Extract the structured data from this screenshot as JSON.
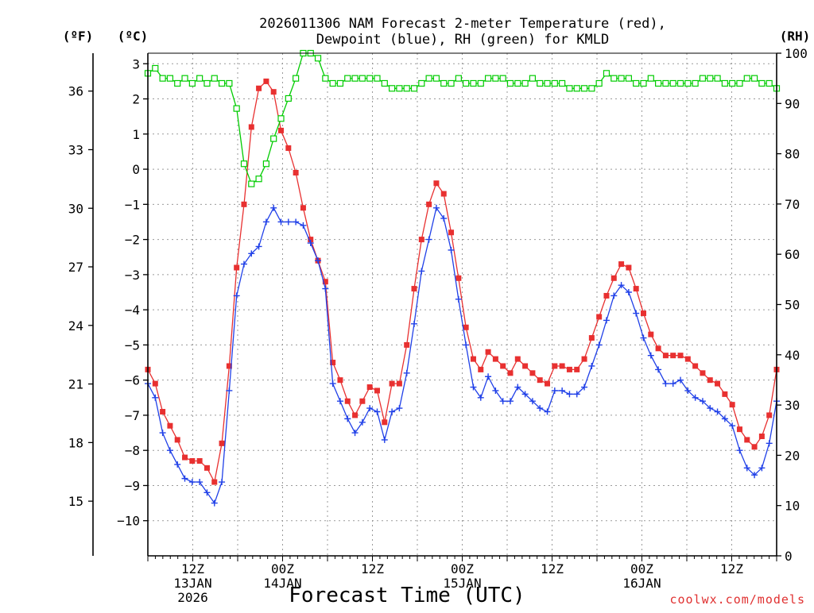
{
  "chart_data": {
    "type": "line",
    "title_lines": [
      "2026011306 NAM Forecast 2-meter Temperature (red),",
      "Dewpoint (blue), RH (green) for KMLD"
    ],
    "xlabel": "Forecast Time (UTC)",
    "credit": "coolwx.com/models",
    "units": {
      "left_f": "(ºF)",
      "left_c": "(ºC)",
      "right": "(RH)"
    },
    "x_axis": {
      "start_hour_label": "2026-01-13 06Z",
      "hour_range": [
        0,
        84
      ],
      "tick_hours": [
        6,
        18,
        30,
        42,
        54,
        66,
        78
      ],
      "tick_labels": [
        [
          "12Z",
          "13JAN",
          "2026"
        ],
        [
          "00Z",
          "14JAN"
        ],
        [
          "12Z"
        ],
        [
          "00Z",
          "15JAN"
        ],
        [
          "12Z"
        ],
        [
          "00Z",
          "16JAN"
        ],
        [
          "12Z"
        ]
      ]
    },
    "y_axis_celsius": {
      "range": [
        -11,
        3.3
      ],
      "ticks": [
        3,
        2,
        1,
        0,
        -1,
        -2,
        -3,
        -4,
        -5,
        -6,
        -7,
        -8,
        -9,
        -10
      ],
      "tick_labels": [
        "3",
        "2",
        "1",
        "0",
        "−1",
        "−2",
        "−3",
        "−4",
        "−5",
        "−6",
        "−7",
        "−8",
        "−9",
        "−10"
      ]
    },
    "y_axis_fahrenheit": {
      "ticks": [
        36,
        33,
        30,
        27,
        24,
        21,
        18,
        15
      ],
      "tick_labels": [
        "36",
        "33",
        "30",
        "27",
        "24",
        "21",
        "18",
        "15"
      ]
    },
    "y_axis_rh": {
      "range": [
        0,
        100
      ],
      "ticks": [
        100,
        90,
        80,
        70,
        60,
        50,
        40,
        30,
        20,
        10,
        0
      ],
      "tick_labels": [
        "100",
        "90",
        "80",
        "70",
        "60",
        "50",
        "40",
        "30",
        "20",
        "10",
        "0"
      ]
    },
    "grid": true,
    "series": [
      {
        "key": "temperature",
        "color": "#e83030",
        "marker": "filled-square",
        "values": [
          -5.7,
          -6.1,
          -6.9,
          -7.3,
          -7.7,
          -8.2,
          -8.3,
          -8.3,
          -8.5,
          -8.9,
          -7.8,
          -5.6,
          -2.8,
          -1.0,
          1.2,
          2.3,
          2.5,
          2.2,
          1.1,
          0.6,
          -0.1,
          -1.1,
          -2.0,
          -2.6,
          -3.2,
          -5.5,
          -6.0,
          -6.6,
          -7.0,
          -6.6,
          -6.2,
          -6.3,
          -7.2,
          -6.1,
          -6.1,
          -5.0,
          -3.4,
          -2.0,
          -1.0,
          -0.4,
          -0.7,
          -1.8,
          -3.1,
          -4.5,
          -5.4,
          -5.7,
          -5.2,
          -5.4,
          -5.6,
          -5.8,
          -5.4,
          -5.6,
          -5.8,
          -6.0,
          -6.1,
          -5.6,
          -5.6,
          -5.7,
          -5.7,
          -5.4,
          -4.8,
          -4.2,
          -3.6,
          -3.1,
          -2.7,
          -2.8,
          -3.4,
          -4.1,
          -4.7,
          -5.1,
          -5.3,
          -5.3,
          -5.3,
          -5.4,
          -5.6,
          -5.8,
          -6.0,
          -6.1,
          -6.4,
          -6.7,
          -7.4,
          -7.7,
          -7.9,
          -7.6,
          -7.0,
          -5.7
        ]
      },
      {
        "key": "dewpoint",
        "color": "#2040e8",
        "marker": "plus",
        "values": [
          -6.1,
          -6.5,
          -7.5,
          -8.0,
          -8.4,
          -8.8,
          -8.9,
          -8.9,
          -9.2,
          -9.5,
          -8.9,
          -6.3,
          -3.6,
          -2.7,
          -2.4,
          -2.2,
          -1.5,
          -1.1,
          -1.5,
          -1.5,
          -1.5,
          -1.6,
          -2.1,
          -2.6,
          -3.4,
          -6.1,
          -6.6,
          -7.1,
          -7.5,
          -7.2,
          -6.8,
          -6.9,
          -7.7,
          -6.9,
          -6.8,
          -5.8,
          -4.4,
          -2.9,
          -2.0,
          -1.1,
          -1.4,
          -2.3,
          -3.7,
          -5.0,
          -6.2,
          -6.5,
          -5.9,
          -6.3,
          -6.6,
          -6.6,
          -6.2,
          -6.4,
          -6.6,
          -6.8,
          -6.9,
          -6.3,
          -6.3,
          -6.4,
          -6.4,
          -6.2,
          -5.6,
          -5.0,
          -4.3,
          -3.6,
          -3.3,
          -3.5,
          -4.1,
          -4.8,
          -5.3,
          -5.7,
          -6.1,
          -6.1,
          -6.0,
          -6.3,
          -6.5,
          -6.6,
          -6.8,
          -6.9,
          -7.1,
          -7.3,
          -8.0,
          -8.5,
          -8.7,
          -8.5,
          -7.8,
          -6.6
        ]
      },
      {
        "key": "rh",
        "color": "#00cc00",
        "marker": "open-square",
        "values": [
          96,
          97,
          95,
          95,
          94,
          95,
          94,
          95,
          94,
          95,
          94,
          94,
          89,
          78,
          74,
          75,
          78,
          83,
          87,
          91,
          95,
          100,
          100,
          99,
          95,
          94,
          94,
          95,
          95,
          95,
          95,
          95,
          94,
          93,
          93,
          93,
          93,
          94,
          95,
          95,
          94,
          94,
          95,
          94,
          94,
          94,
          95,
          95,
          95,
          94,
          94,
          94,
          95,
          94,
          94,
          94,
          94,
          93,
          93,
          93,
          93,
          94,
          96,
          95,
          95,
          95,
          94,
          94,
          95,
          94,
          94,
          94,
          94,
          94,
          94,
          95,
          95,
          95,
          94,
          94,
          94,
          95,
          95,
          94,
          94,
          93
        ]
      }
    ]
  }
}
